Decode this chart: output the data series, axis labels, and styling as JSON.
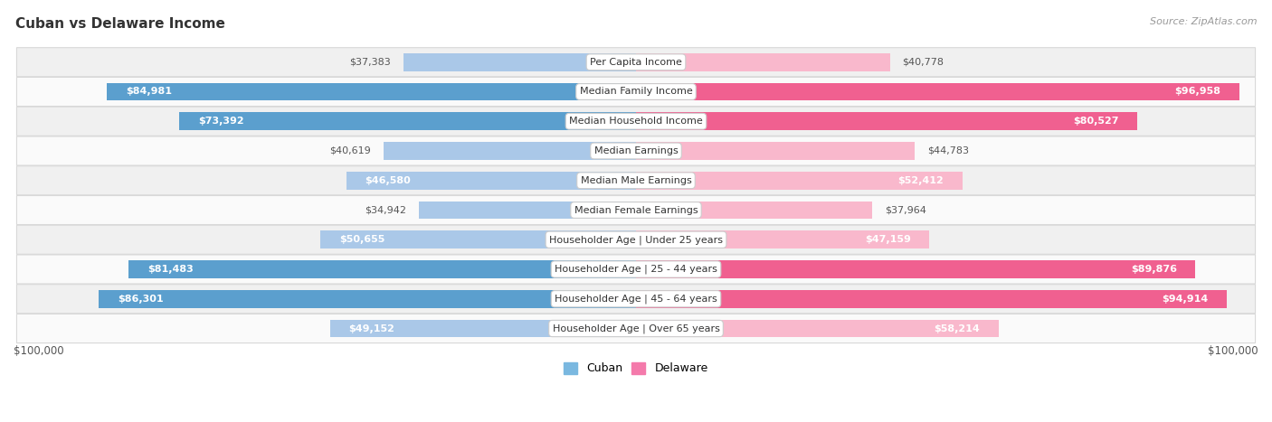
{
  "title": "Cuban vs Delaware Income",
  "source": "Source: ZipAtlas.com",
  "max_value": 100000,
  "categories": [
    "Per Capita Income",
    "Median Family Income",
    "Median Household Income",
    "Median Earnings",
    "Median Male Earnings",
    "Median Female Earnings",
    "Householder Age | Under 25 years",
    "Householder Age | 25 - 44 years",
    "Householder Age | 45 - 64 years",
    "Householder Age | Over 65 years"
  ],
  "cuban_values": [
    37383,
    84981,
    73392,
    40619,
    46580,
    34942,
    50655,
    81483,
    86301,
    49152
  ],
  "delaware_values": [
    40778,
    96958,
    80527,
    44783,
    52412,
    37964,
    47159,
    89876,
    94914,
    58214
  ],
  "cuban_color_light": "#aac8e8",
  "cuban_color_dark": "#5b9fce",
  "delaware_color_light": "#f9b8cc",
  "delaware_color_dark": "#f06090",
  "row_bg_even": "#f0f0f0",
  "row_bg_odd": "#fafafa",
  "row_border": "#d8d8d8",
  "label_box_color": "#ffffff",
  "label_box_edge": "#cccccc",
  "title_color": "#333333",
  "source_color": "#999999",
  "value_color_inside": "#ffffff",
  "value_color_outside": "#555555",
  "threshold_inside": 0.45,
  "legend_cuban_color": "#7ab8e0",
  "legend_delaware_color": "#f47aab"
}
